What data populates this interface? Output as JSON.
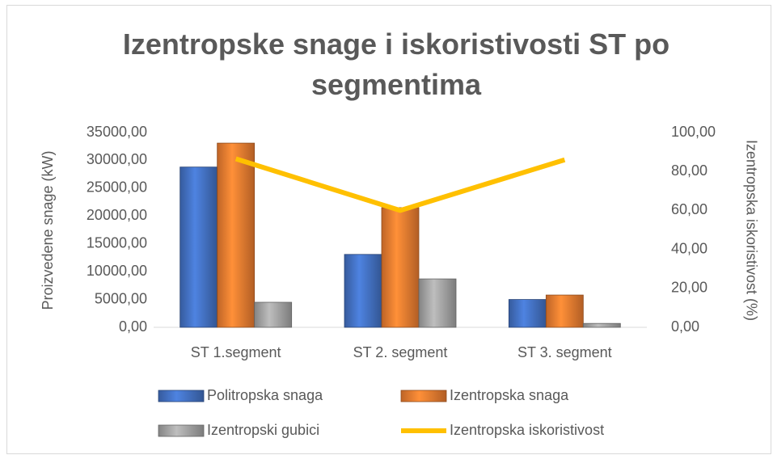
{
  "chart_data": {
    "type": "bar",
    "title": "Izentropske snage i iskoristivosti ST po segmentima",
    "categories": [
      "ST 1.segment",
      "ST 2. segment",
      "ST 3. segment"
    ],
    "series": [
      {
        "name": "Politropska snaga",
        "color": "#4472c4",
        "values": [
          28800,
          13100,
          5000
        ]
      },
      {
        "name": "Izentropska snaga",
        "color": "#ed7d31",
        "values": [
          33100,
          21500,
          5800
        ]
      },
      {
        "name": "Izentropski gubici",
        "color": "#a5a5a5",
        "values": [
          4500,
          8700,
          700
        ]
      },
      {
        "name": "Izentropska iskoristivost",
        "color": "#ffc000",
        "type": "line",
        "axis": "y2",
        "values": [
          86.5,
          60,
          86
        ]
      }
    ],
    "ylabel": "Proizvedene snage (kW)",
    "y2label": "Izentropska iskoristivost (%)",
    "ylim": [
      0,
      35000
    ],
    "yticks": [
      {
        "value": 0,
        "label": "0,00"
      },
      {
        "value": 5000,
        "label": "5000,00"
      },
      {
        "value": 10000,
        "label": "10000,00"
      },
      {
        "value": 15000,
        "label": "15000,00"
      },
      {
        "value": 20000,
        "label": "20000,00"
      },
      {
        "value": 25000,
        "label": "25000,00"
      },
      {
        "value": 30000,
        "label": "30000,00"
      },
      {
        "value": 35000,
        "label": "35000,00"
      }
    ],
    "y2lim": [
      0,
      100
    ],
    "y2ticks": [
      {
        "value": 0,
        "label": "0,00"
      },
      {
        "value": 20,
        "label": "20,00"
      },
      {
        "value": 40,
        "label": "40,00"
      },
      {
        "value": 60,
        "label": "60,00"
      },
      {
        "value": 80,
        "label": "80,00"
      },
      {
        "value": 100,
        "label": "100,00"
      }
    ],
    "legend": "bottom"
  }
}
